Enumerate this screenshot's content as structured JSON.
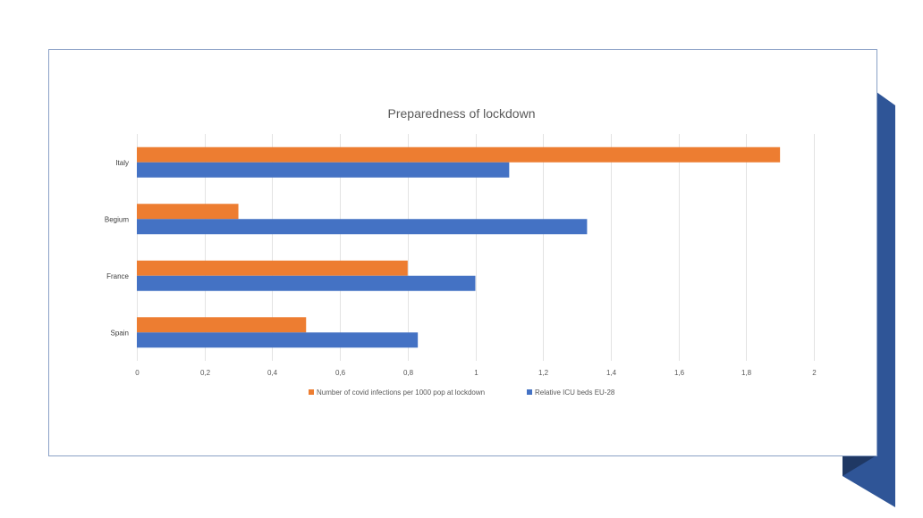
{
  "chart_data": {
    "type": "bar",
    "orientation": "horizontal",
    "title": "Preparedness of lockdown",
    "categories": [
      "Italy",
      "Begium",
      "France",
      "Spain"
    ],
    "series": [
      {
        "name": "Number of covid infections per 1000 pop at lockdown",
        "values": [
          1.9,
          0.3,
          0.8,
          0.5
        ],
        "color": "#ED7D31"
      },
      {
        "name": "Relative ICU beds EU-28",
        "values": [
          1.1,
          1.33,
          1.0,
          0.83
        ],
        "color": "#4472C4"
      }
    ],
    "xticks": [
      "0",
      "0,2",
      "0,4",
      "0,6",
      "0,8",
      "1",
      "1,2",
      "1,4",
      "1,6",
      "1,8",
      "2"
    ],
    "xlim": [
      0,
      2
    ],
    "grid": true,
    "legend": "bottom"
  },
  "decoration": {
    "accent_color": "#2F5597",
    "accent_dark": "#1F3864"
  }
}
